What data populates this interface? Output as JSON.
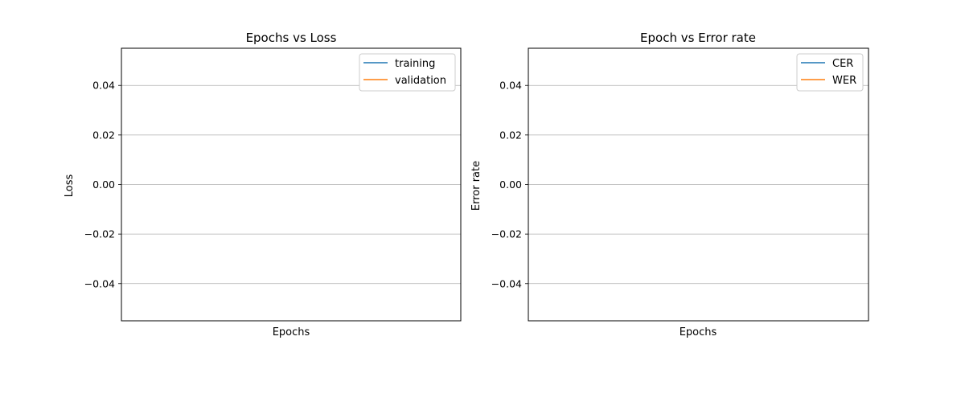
{
  "chart_data": [
    {
      "type": "line",
      "title": "Epochs vs Loss",
      "xlabel": "Epochs",
      "ylabel": "Loss",
      "ylim": [
        -0.055,
        0.055
      ],
      "yticks": [
        0.04,
        0.02,
        0.0,
        -0.02,
        -0.04
      ],
      "ytick_labels": [
        "0.04",
        "0.02",
        "0.00",
        "−0.02",
        "−0.04"
      ],
      "grid": "y",
      "legend": "top-right",
      "series": [
        {
          "name": "training",
          "color": "#1f77b4",
          "values": []
        },
        {
          "name": "validation",
          "color": "#ff7f0e",
          "values": []
        }
      ]
    },
    {
      "type": "line",
      "title": "Epoch vs Error rate",
      "xlabel": "Epochs",
      "ylabel": "Error rate",
      "ylim": [
        -0.055,
        0.055
      ],
      "yticks": [
        0.04,
        0.02,
        0.0,
        -0.02,
        -0.04
      ],
      "ytick_labels": [
        "0.04",
        "0.02",
        "0.00",
        "−0.02",
        "−0.04"
      ],
      "grid": "y",
      "legend": "top-right",
      "series": [
        {
          "name": "CER",
          "color": "#1f77b4",
          "values": []
        },
        {
          "name": "WER",
          "color": "#ff7f0e",
          "values": []
        }
      ]
    }
  ]
}
